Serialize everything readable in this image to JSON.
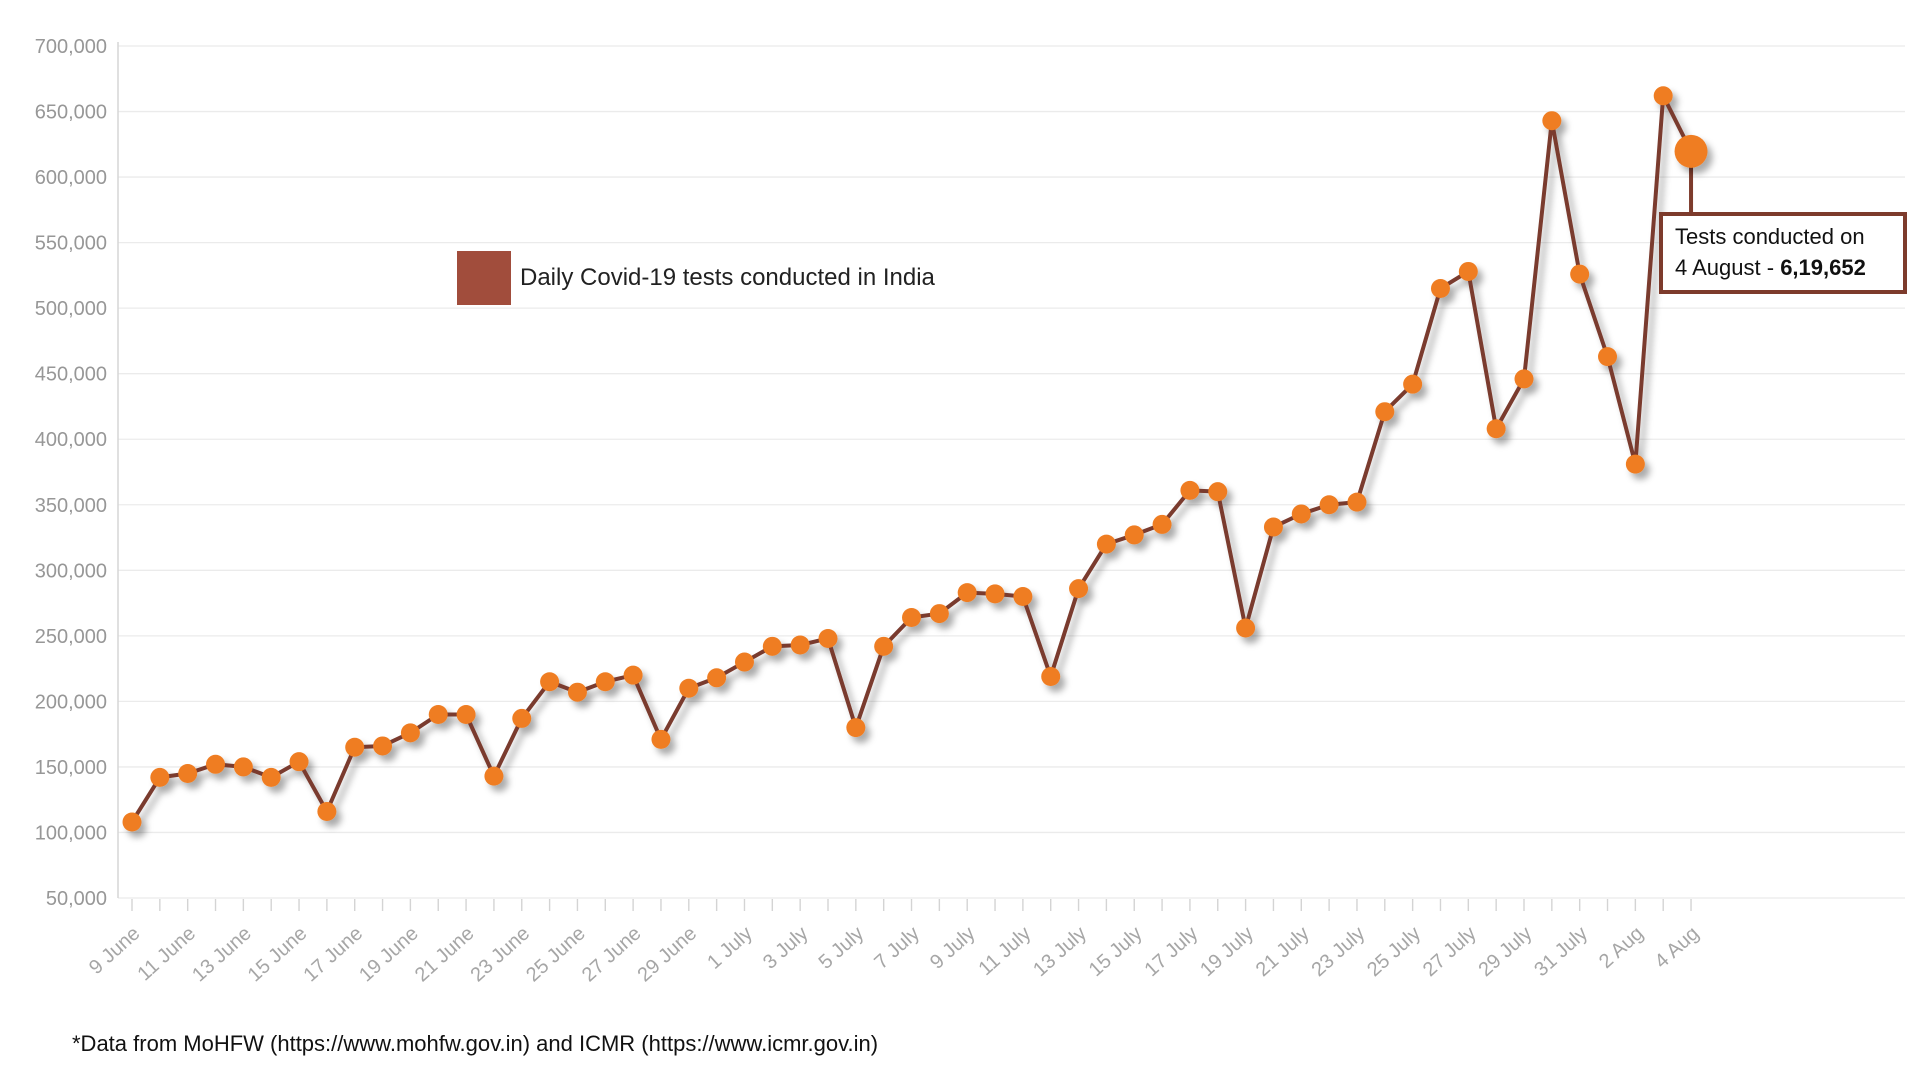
{
  "colors": {
    "dot": "#ef7d22",
    "line": "#7a3b2e",
    "legend_swatch": "#a14d3c",
    "callout_border": "#7d3b2c",
    "grid": "#ebebeb",
    "axis": "#d6d6d6",
    "tick": "#d4d4d4",
    "x_tick_label": "#a6a6a6",
    "y_tick_label": "#979797",
    "shadow": "rgba(0,0,0,0.35)"
  },
  "legend": {
    "label": "Daily Covid-19 tests conducted in India"
  },
  "callout": {
    "line1": "Tests conducted on",
    "line2_prefix": "4 August - ",
    "value": "6,19,652"
  },
  "footnote": "*Data from MoHFW (https://www.mohfw.gov.in) and ICMR (https://www.icmr.gov.in)",
  "chart_data": {
    "type": "line",
    "title": "Daily Covid-19 tests conducted in India",
    "xlabel": "",
    "ylabel": "",
    "ylim": [
      50000,
      700000
    ],
    "ytick_step": 50000,
    "grid": "horizontal",
    "legend_position": "inside-top-left",
    "x_tick_label_every": 2,
    "x": [
      "9 June",
      "10 June",
      "11 June",
      "12 June",
      "13 June",
      "14 June",
      "15 June",
      "16 June",
      "17 June",
      "18 June",
      "19 June",
      "20 June",
      "21 June",
      "22 June",
      "23 June",
      "24 June",
      "25 June",
      "26 June",
      "27 June",
      "28 June",
      "29 June",
      "30 June",
      "1 July",
      "2 July",
      "3 July",
      "4 July",
      "5 July",
      "6 July",
      "7 July",
      "8 July",
      "9 July",
      "10 July",
      "11 July",
      "12 July",
      "13 July",
      "14 July",
      "15 July",
      "16 July",
      "17 July",
      "18 July",
      "19 July",
      "20 July",
      "21 July",
      "22 July",
      "23 July",
      "24 July",
      "25 July",
      "26 July",
      "27 July",
      "28 July",
      "29 July",
      "30 July",
      "31 July",
      "1 Aug",
      "2 Aug",
      "3 Aug",
      "4 Aug"
    ],
    "values": [
      108000,
      142000,
      145000,
      152000,
      150000,
      142000,
      154000,
      116000,
      165000,
      166000,
      176000,
      190000,
      190000,
      143000,
      187000,
      215000,
      207000,
      215000,
      220000,
      171000,
      210000,
      218000,
      230000,
      242000,
      243000,
      248000,
      180000,
      242000,
      264000,
      267000,
      283000,
      282000,
      280000,
      219000,
      286000,
      320000,
      327000,
      335000,
      361000,
      360000,
      256000,
      333000,
      343000,
      350000,
      352000,
      421000,
      442000,
      515000,
      528000,
      408000,
      446000,
      643000,
      526000,
      463000,
      381000,
      662000,
      619652
    ],
    "highlight": {
      "index": 56,
      "x": "4 Aug",
      "value": 619652,
      "value_formatted": "6,19,652"
    }
  }
}
